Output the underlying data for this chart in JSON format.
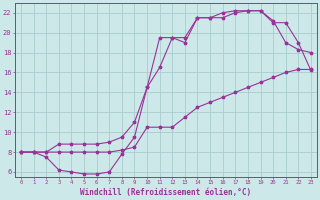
{
  "xlabel": "Windchill (Refroidissement éolien,°C)",
  "bg_color": "#cce8e8",
  "grid_color": "#aacccc",
  "line_color": "#993399",
  "xlim": [
    -0.5,
    23.5
  ],
  "ylim": [
    5.5,
    23.0
  ],
  "xticks": [
    0,
    1,
    2,
    3,
    4,
    5,
    6,
    7,
    8,
    9,
    10,
    11,
    12,
    13,
    14,
    15,
    16,
    17,
    18,
    19,
    20,
    21,
    22,
    23
  ],
  "yticks": [
    6,
    8,
    10,
    12,
    14,
    16,
    18,
    20,
    22
  ],
  "line1_x": [
    0,
    1,
    2,
    3,
    4,
    5,
    6,
    7,
    8,
    9,
    10,
    11,
    12,
    13,
    14,
    15,
    16,
    17,
    18,
    19,
    20,
    21,
    22,
    23
  ],
  "line1_y": [
    8.0,
    8.0,
    7.5,
    6.2,
    6.0,
    5.8,
    5.8,
    6.0,
    7.8,
    9.5,
    14.5,
    16.5,
    19.5,
    19.0,
    21.5,
    21.5,
    21.5,
    22.0,
    22.2,
    22.2,
    21.2,
    19.0,
    18.3,
    18.0
  ],
  "line2_x": [
    0,
    1,
    2,
    3,
    4,
    5,
    6,
    7,
    8,
    9,
    10,
    11,
    12,
    13,
    14,
    15,
    16,
    17,
    18,
    19,
    20,
    21,
    22,
    23
  ],
  "line2_y": [
    8.0,
    8.0,
    8.0,
    8.8,
    8.8,
    8.8,
    8.8,
    9.0,
    9.5,
    11.0,
    14.5,
    19.5,
    19.5,
    19.5,
    21.5,
    21.5,
    22.0,
    22.2,
    22.2,
    22.2,
    21.0,
    21.0,
    19.0,
    16.2
  ],
  "line3_x": [
    0,
    1,
    2,
    3,
    4,
    5,
    6,
    7,
    8,
    9,
    10,
    11,
    12,
    13,
    14,
    15,
    16,
    17,
    18,
    19,
    20,
    21,
    22,
    23
  ],
  "line3_y": [
    8.0,
    8.0,
    8.0,
    8.0,
    8.0,
    8.0,
    8.0,
    8.0,
    8.2,
    8.5,
    10.5,
    10.5,
    10.5,
    11.5,
    12.5,
    13.0,
    13.5,
    14.0,
    14.5,
    15.0,
    15.5,
    16.0,
    16.3,
    16.3
  ]
}
